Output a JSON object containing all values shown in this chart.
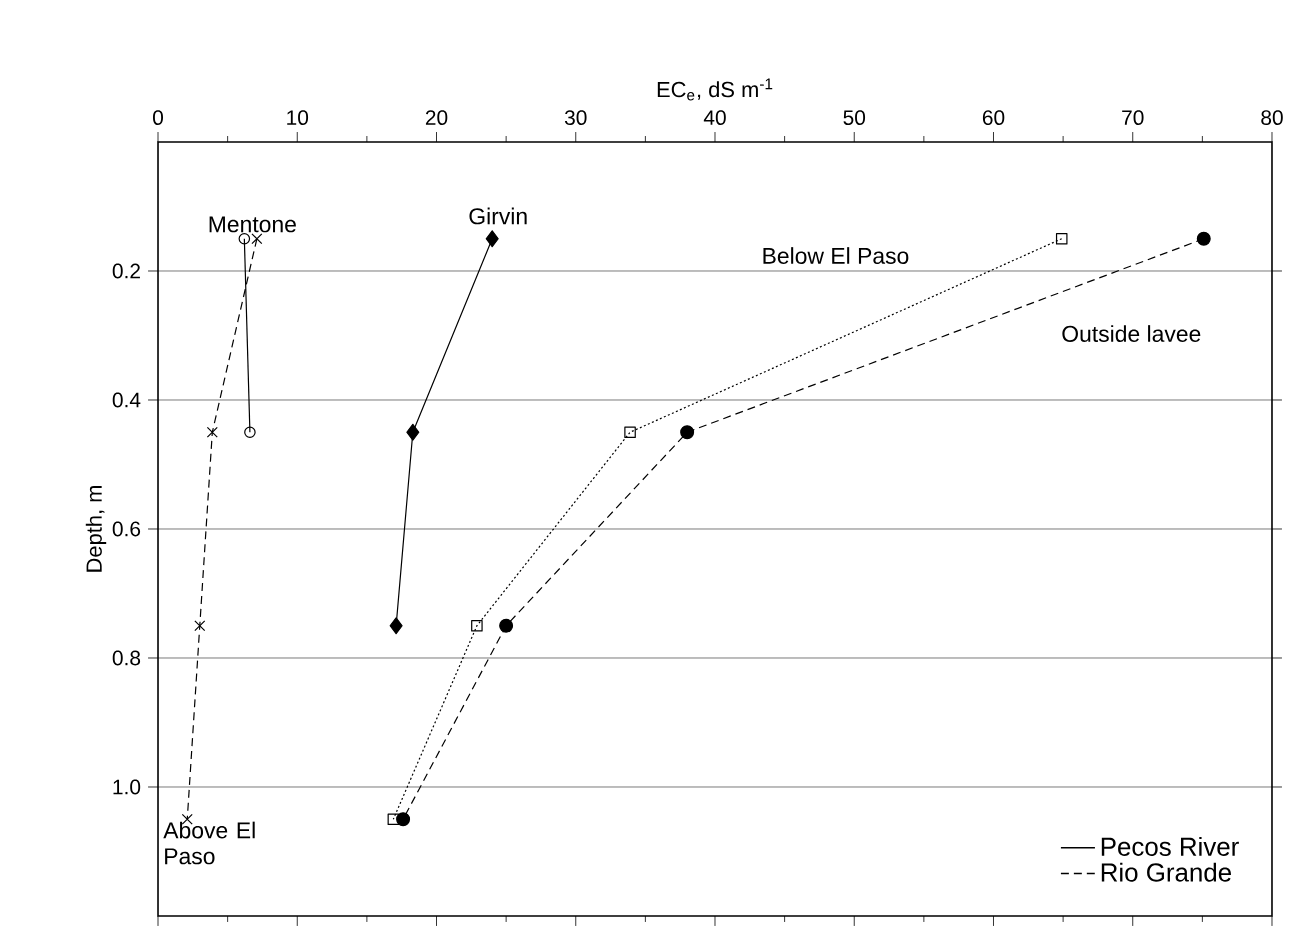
{
  "chart_data": {
    "type": "line",
    "xlabel": "EC$_{e}$, dS m$^{-1}$",
    "ylabel": "Depth, m",
    "xlim": [
      0,
      80
    ],
    "xticks": [
      0,
      10,
      20,
      30,
      40,
      50,
      60,
      70,
      80
    ],
    "ylim": [
      1.2,
      0
    ],
    "yticks": [
      0.2,
      0.4,
      0.6,
      {
        "value": 1.0,
        "label": "1.0"
      },
      0.8
    ],
    "grid": "y",
    "legend": "bottom right",
    "annotations": [
      "Pecos River",
      "Rio Grande"
    ],
    "series": [
      {
        "name": "Mentone",
        "color": "#000000",
        "line_style": "solid",
        "marker": "circle",
        "x": [
          6.2,
          6.6
        ],
        "values": [
          0.15,
          0.45
        ]
      },
      {
        "name": "Girvin",
        "color": "#000000",
        "line_style": "solid",
        "marker": "diamond",
        "x": [
          24.0,
          18.3,
          17.1
        ],
        "values": [
          0.15,
          0.45,
          0.75
        ]
      },
      {
        "name": "Above El Paso",
        "color": "#000000",
        "line_style": "dashed",
        "marker": "cross",
        "x": [
          7.1,
          3.9,
          3.0,
          2.1
        ],
        "values": [
          0.15,
          0.45,
          0.75,
          1.05
        ]
      },
      {
        "name": "Below El Paso",
        "color": "#000000",
        "line_style": "dotted",
        "marker": "square",
        "x": [
          64.9,
          33.9,
          22.9,
          16.9
        ],
        "values": [
          0.15,
          0.45,
          0.75,
          1.05
        ]
      },
      {
        "name": "Outside lavee",
        "color": "#000000",
        "line_style": "dashed",
        "marker": "circle",
        "x": [
          75.1,
          38.0,
          25.0,
          17.6
        ],
        "values": [
          0.15,
          0.45,
          0.75,
          1.05
        ]
      }
    ]
  }
}
